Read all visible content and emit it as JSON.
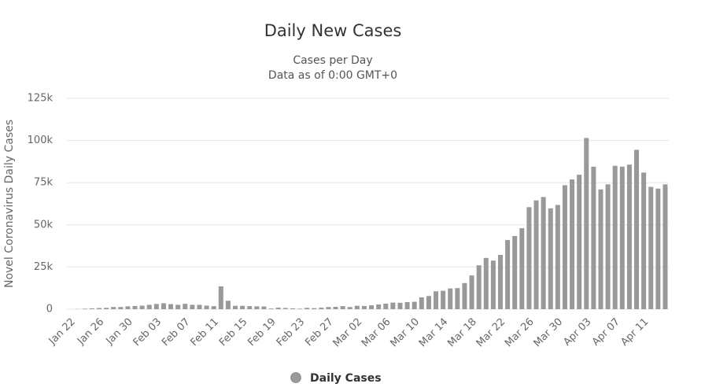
{
  "chart_data": {
    "type": "bar",
    "title": "Daily New Cases",
    "subtitle": [
      "Cases per Day",
      "Data as of 0:00 GMT+0"
    ],
    "y_label": "Novel Coronavirus Daily Cases",
    "categories": [
      "Jan 22",
      null,
      null,
      null,
      "Jan 26",
      null,
      null,
      null,
      "Jan 30",
      null,
      null,
      null,
      "Feb 03",
      null,
      null,
      null,
      "Feb 07",
      null,
      null,
      null,
      "Feb 11",
      null,
      null,
      null,
      "Feb 15",
      null,
      null,
      null,
      "Feb 19",
      null,
      null,
      null,
      "Feb 23",
      null,
      null,
      null,
      "Feb 27",
      null,
      null,
      null,
      "Mar 02",
      null,
      null,
      null,
      "Mar 06",
      null,
      null,
      null,
      "Mar 10",
      null,
      null,
      null,
      "Mar 14",
      null,
      null,
      null,
      "Mar 18",
      null,
      null,
      null,
      "Mar 22",
      null,
      null,
      null,
      "Mar 26",
      null,
      null,
      null,
      "Mar 30",
      null,
      null,
      null,
      "Apr 03",
      null,
      null,
      null,
      "Apr 07",
      null,
      null,
      null,
      "Apr 11",
      null,
      null,
      null
    ],
    "series": [
      {
        "name": "Daily Cases",
        "color": "#999999",
        "values": [
          0,
          100,
          300,
          500,
          700,
          800,
          1300,
          1300,
          1700,
          1900,
          2100,
          2600,
          3100,
          3500,
          3000,
          2600,
          3200,
          2600,
          2600,
          2100,
          1800,
          13500,
          5000,
          2000,
          2000,
          1800,
          1700,
          1600,
          400,
          900,
          700,
          500,
          300,
          800,
          600,
          900,
          1300,
          1400,
          1800,
          1300,
          2000,
          1900,
          2300,
          2800,
          3300,
          3900,
          3800,
          4200,
          4400,
          7000,
          7800,
          10600,
          10900,
          12300,
          12500,
          15500,
          20000,
          26000,
          30400,
          28800,
          32200,
          41000,
          43400,
          48000,
          60500,
          64500,
          66500,
          59800,
          61800,
          73500,
          76900,
          79700,
          101500,
          84500,
          71000,
          74000,
          85000,
          84500,
          85700,
          94500,
          81000,
          72500,
          71500,
          74000
        ]
      }
    ],
    "ylim": [
      0,
      125000
    ],
    "yticks": [
      0,
      {
        "value": 25000,
        "label": "25k"
      },
      {
        "value": 50000,
        "label": "50k"
      },
      {
        "value": 75000,
        "label": "75k"
      },
      {
        "value": 100000,
        "label": "100k"
      },
      {
        "value": 125000,
        "label": "125k"
      }
    ],
    "grid": true
  }
}
